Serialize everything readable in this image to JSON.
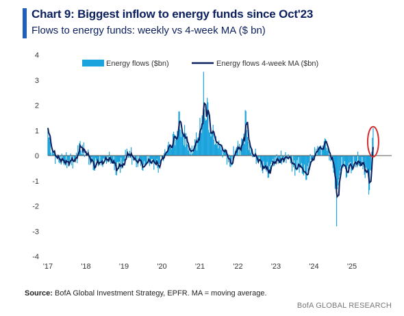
{
  "header": {
    "title": "Chart 9: Biggest inflow to energy funds since Oct'23",
    "subtitle": "Flows to energy funds: weekly vs 4-week MA ($ bn)"
  },
  "footer": {
    "source_label": "Source:",
    "source_text": " BofA Global Investment Strategy, EPFR. MA = moving average.",
    "brand": "BofA GLOBAL RESEARCH"
  },
  "colors": {
    "accent": "#1f5fbf",
    "title": "#0b1f5e",
    "bars": "#1aa3dc",
    "ma_line": "#0b1f5e",
    "highlight": "#d62b2b",
    "zero_line": "#555555"
  },
  "chart_data": {
    "type": "bar",
    "title": "",
    "xlabel": "",
    "ylabel": "",
    "ylim": [
      -4,
      4
    ],
    "yticks": [
      -4,
      -3,
      -2,
      -1,
      0,
      1,
      2,
      3,
      4
    ],
    "xticks": [
      "'17",
      "'18",
      "'19",
      "'20",
      "'21",
      "'22",
      "'23",
      "'24",
      "'25"
    ],
    "legend_position": "top",
    "grid": false,
    "x_start": "2017-01",
    "x_end": "2025-08",
    "anchors": {
      "x": [
        2017.0,
        2017.05,
        2017.15,
        2017.3,
        2017.5,
        2017.7,
        2017.85,
        2018.0,
        2018.2,
        2018.4,
        2018.6,
        2018.8,
        2018.95,
        2019.1,
        2019.3,
        2019.5,
        2019.7,
        2019.9,
        2020.0,
        2020.15,
        2020.3,
        2020.45,
        2020.6,
        2020.75,
        2020.9,
        2021.0,
        2021.1,
        2021.2,
        2021.35,
        2021.5,
        2021.65,
        2021.8,
        2021.95,
        2022.1,
        2022.2,
        2022.35,
        2022.5,
        2022.65,
        2022.8,
        2022.95,
        2023.1,
        2023.3,
        2023.5,
        2023.7,
        2023.8,
        2023.95,
        2024.1,
        2024.3,
        2024.5,
        2024.6,
        2024.7,
        2024.85,
        2025.0,
        2025.2,
        2025.35,
        2025.45,
        2025.5,
        2025.55
      ],
      "weekly": [
        1.1,
        0.6,
        0.1,
        -0.3,
        -0.5,
        -0.2,
        0.6,
        0.1,
        -0.6,
        -0.4,
        -0.2,
        -0.8,
        -0.5,
        0.1,
        -0.2,
        -0.6,
        -0.3,
        -0.7,
        -0.2,
        0.4,
        0.9,
        1.8,
        1.2,
        0.3,
        0.9,
        1.5,
        3.4,
        2.2,
        1.2,
        0.6,
        0.3,
        -0.5,
        0.3,
        0.7,
        1.9,
        0.2,
        -0.2,
        -0.7,
        -0.9,
        -0.4,
        -0.3,
        -0.1,
        -0.8,
        -0.7,
        -1.0,
        -0.2,
        0.4,
        0.7,
        -0.5,
        -2.9,
        -0.4,
        -0.9,
        -0.6,
        -0.4,
        -0.9,
        -1.6,
        -0.6,
        1.1
      ],
      "ma": [
        0.6,
        0.4,
        0.1,
        -0.2,
        -0.3,
        -0.1,
        0.3,
        0.0,
        -0.3,
        -0.3,
        -0.1,
        -0.5,
        -0.3,
        0.0,
        -0.2,
        -0.3,
        -0.2,
        -0.4,
        -0.2,
        0.2,
        0.5,
        1.0,
        0.7,
        0.2,
        0.5,
        0.9,
        1.6,
        1.2,
        0.6,
        0.3,
        0.1,
        -0.2,
        0.1,
        0.4,
        0.8,
        0.1,
        -0.1,
        -0.4,
        -0.6,
        -0.3,
        -0.2,
        -0.1,
        -0.5,
        -0.5,
        -0.6,
        -0.1,
        0.2,
        0.4,
        -0.3,
        -0.9,
        -0.3,
        -0.5,
        -0.4,
        -0.3,
        -0.4,
        -0.5,
        -0.2,
        0.3
      ]
    },
    "series": [
      {
        "name": "Energy flows ($bn)",
        "kind": "bar"
      },
      {
        "name": "Energy flows 4-week MA ($bn)",
        "kind": "line"
      }
    ],
    "highlight_note": "circled final bar (~1.1 in Jul-2025)"
  }
}
